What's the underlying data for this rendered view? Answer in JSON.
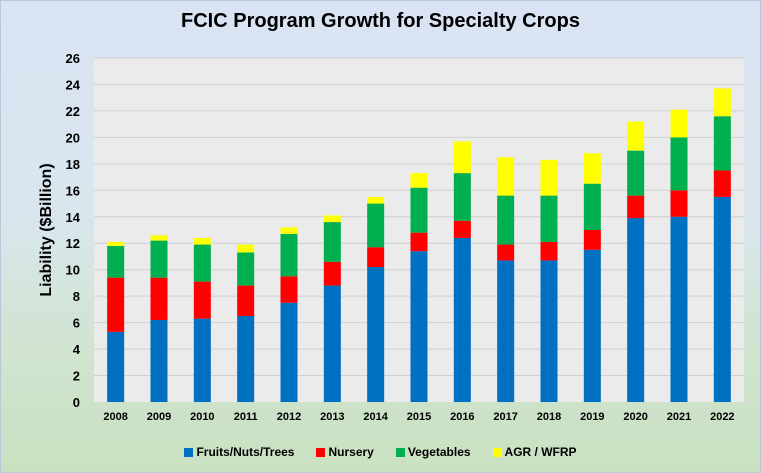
{
  "chart_data": {
    "type": "bar",
    "stacked": true,
    "title": "FCIC Program Growth for Specialty Crops",
    "xlabel": "",
    "ylabel": "Liability ($Billion)",
    "ylim": [
      0,
      26
    ],
    "yticks": [
      0,
      2,
      4,
      6,
      8,
      10,
      12,
      14,
      16,
      18,
      20,
      22,
      24,
      26
    ],
    "grid": true,
    "legend": "bottom",
    "categories": [
      "2008",
      "2009",
      "2010",
      "2011",
      "2012",
      "2013",
      "2014",
      "2015",
      "2016",
      "2017",
      "2018",
      "2019",
      "2020",
      "2021",
      "2022"
    ],
    "series": [
      {
        "name": "Fruits/Nuts/Trees",
        "color": "#0070c0",
        "values": [
          5.3,
          6.2,
          6.3,
          6.5,
          7.5,
          8.8,
          10.2,
          11.4,
          12.4,
          10.7,
          10.7,
          11.5,
          13.9,
          14.0,
          15.5
        ]
      },
      {
        "name": "Nursery",
        "color": "#ff0000",
        "values": [
          4.1,
          3.2,
          2.8,
          2.3,
          2.0,
          1.8,
          1.5,
          1.4,
          1.3,
          1.2,
          1.4,
          1.5,
          1.7,
          2.0,
          2.0
        ]
      },
      {
        "name": "Vegetables",
        "color": "#00b050",
        "values": [
          2.4,
          2.8,
          2.8,
          2.5,
          3.2,
          3.0,
          3.3,
          3.4,
          3.6,
          3.7,
          3.5,
          3.5,
          3.4,
          4.0,
          4.1
        ]
      },
      {
        "name": "AGR / WFRP",
        "color": "#ffff00",
        "values": [
          0.3,
          0.4,
          0.5,
          0.6,
          0.5,
          0.5,
          0.5,
          1.1,
          2.4,
          2.9,
          2.7,
          2.3,
          2.2,
          2.1,
          2.1
        ]
      }
    ]
  }
}
